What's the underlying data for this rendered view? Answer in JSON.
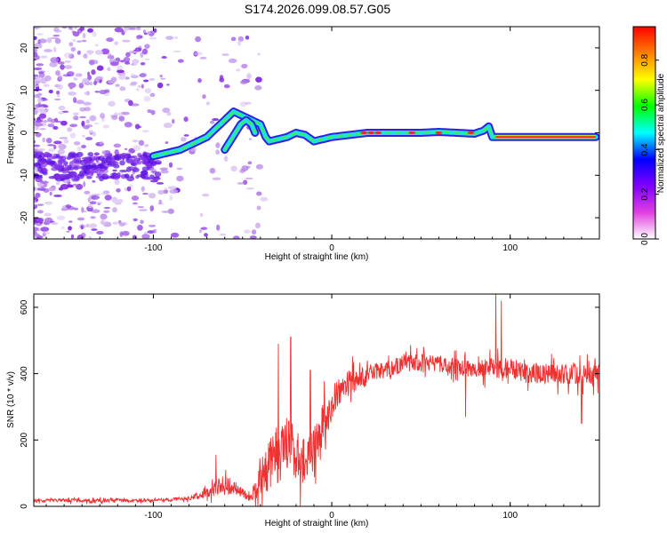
{
  "title": "S174.2026.099.08.57.G05",
  "colors": {
    "snr_line": "#ee3030",
    "noise_scatter": "#c9a6ee",
    "track_blue": "#3020e0",
    "track_cyan": "#20e0e0",
    "track_red": "#ff2020"
  },
  "chart_data": [
    {
      "type": "heatmap",
      "title": "S174.2026.099.08.57.G05",
      "xlabel": "Height of straight line (km)",
      "ylabel": "Frequency (Hz)",
      "xlim": [
        -167,
        150
      ],
      "ylim": [
        -25,
        25
      ],
      "xticks": [
        -100,
        0,
        100
      ],
      "xtick_labels": [
        "-100",
        "0",
        "100"
      ],
      "yticks": [
        -20,
        -10,
        0,
        10,
        20
      ],
      "ytick_labels": [
        "-20",
        "-10",
        "0",
        "10",
        "20"
      ],
      "ridge_x": [
        -100,
        -95,
        -90,
        -85,
        -80,
        -75,
        -70,
        -65,
        -60,
        -55,
        -50,
        -45,
        -40,
        -37,
        -35,
        -30,
        -25,
        -20,
        -15,
        -10,
        -5,
        0,
        10,
        20,
        30,
        40,
        50,
        60,
        70,
        80,
        85,
        88,
        90,
        95,
        100,
        110,
        120,
        130,
        140,
        148
      ],
      "ridge_y": [
        -5.5,
        -5,
        -4.5,
        -4,
        -3,
        -2,
        -1,
        1,
        3,
        5,
        4,
        3,
        2,
        -1,
        -2,
        -1.5,
        -1,
        0,
        -0.5,
        -2,
        -1.5,
        -1,
        -0.5,
        0,
        0,
        0,
        0,
        0.2,
        0,
        -0.2,
        0.5,
        1.5,
        -1,
        -1,
        -1,
        -1,
        -1,
        -1,
        -1,
        -1
      ],
      "branch_x": [
        -60,
        -57,
        -54,
        -51,
        -48,
        -45,
        -43
      ],
      "branch_y": [
        -4,
        -2,
        0,
        2,
        3,
        2,
        0
      ],
      "colorbar": {
        "label": "Normalized spectral amplitude",
        "range": [
          0,
          0.95
        ],
        "ticks": [
          0.0,
          0.2,
          0.4,
          0.6,
          0.8
        ],
        "tick_labels": [
          "0.0",
          "0.2",
          "0.4",
          "0.6",
          "0.8"
        ],
        "colors": [
          "#ffffff",
          "#e040e0",
          "#8000ff",
          "#0000ff",
          "#00ffff",
          "#00ff00",
          "#ffff00",
          "#ff8000",
          "#ff0000"
        ]
      }
    },
    {
      "type": "line",
      "xlabel": "Height of straight line (km)",
      "ylabel": "SNR (10 * v/v)",
      "xlim": [
        -167,
        150
      ],
      "ylim": [
        0,
        640
      ],
      "xticks": [
        -100,
        0,
        100
      ],
      "xtick_labels": [
        "-100",
        "0",
        "100"
      ],
      "yticks": [
        0,
        200,
        400,
        600
      ],
      "ytick_labels": [
        "0",
        "200",
        "400",
        "600"
      ],
      "envelope_x": [
        -167,
        -140,
        -110,
        -90,
        -80,
        -70,
        -60,
        -50,
        -45,
        -40,
        -30,
        -25,
        -20,
        -15,
        -10,
        -5,
        0,
        5,
        10,
        15,
        20,
        30,
        40,
        50,
        60,
        70,
        80,
        90,
        100,
        110,
        120,
        130,
        140,
        150
      ],
      "envelope_mean": [
        18,
        18,
        18,
        20,
        25,
        40,
        70,
        40,
        25,
        100,
        160,
        180,
        170,
        130,
        180,
        250,
        310,
        350,
        370,
        390,
        395,
        410,
        430,
        435,
        430,
        420,
        410,
        420,
        410,
        400,
        400,
        400,
        395,
        400
      ],
      "envelope_noise": [
        10,
        10,
        10,
        10,
        12,
        30,
        60,
        35,
        20,
        150,
        180,
        180,
        170,
        150,
        150,
        130,
        110,
        90,
        80,
        70,
        60,
        50,
        50,
        50,
        50,
        50,
        50,
        60,
        60,
        60,
        60,
        60,
        60,
        60
      ],
      "spikes": [
        {
          "x": -65,
          "y": 155
        },
        {
          "x": -30,
          "y": 490
        },
        {
          "x": -23,
          "y": 510
        },
        {
          "x": -12,
          "y": 410
        },
        {
          "x": 75,
          "y": 270
        },
        {
          "x": 92,
          "y": 640
        },
        {
          "x": 95,
          "y": 620
        },
        {
          "x": 140,
          "y": 250
        }
      ]
    }
  ]
}
